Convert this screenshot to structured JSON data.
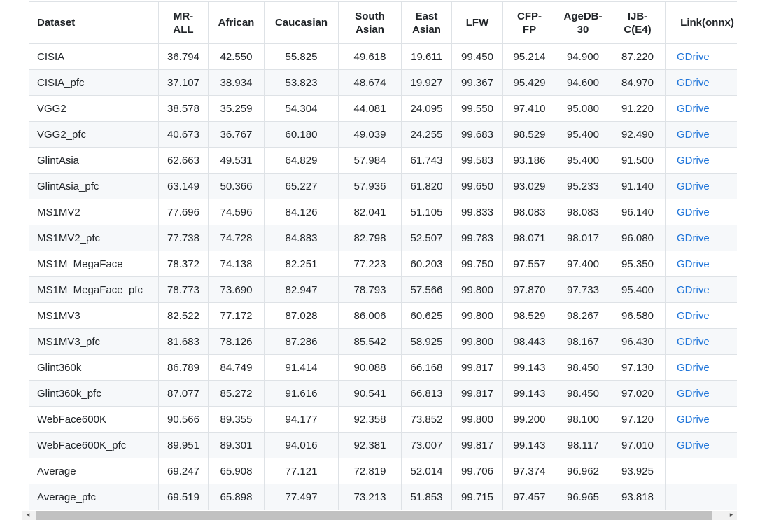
{
  "table": {
    "columns": [
      {
        "label": "Dataset",
        "display": "Dataset"
      },
      {
        "label": "MR-ALL",
        "display": "MR-\nALL"
      },
      {
        "label": "African",
        "display": "African"
      },
      {
        "label": "Caucasian",
        "display": "Caucasian"
      },
      {
        "label": "South Asian",
        "display": "South\nAsian"
      },
      {
        "label": "East Asian",
        "display": "East\nAsian"
      },
      {
        "label": "LFW",
        "display": "LFW"
      },
      {
        "label": "CFP-FP",
        "display": "CFP-\nFP"
      },
      {
        "label": "AgeDB-30",
        "display": "AgeDB-\n30"
      },
      {
        "label": "IJB-C(E4)",
        "display": "IJB-\nC(E4)"
      },
      {
        "label": "Link(onnx)",
        "display": "Link(onnx)"
      }
    ],
    "rows": [
      {
        "dataset": "CISIA",
        "values": [
          "36.794",
          "42.550",
          "55.825",
          "49.618",
          "19.611",
          "99.450",
          "95.214",
          "94.900",
          "87.220"
        ],
        "link": "GDrive"
      },
      {
        "dataset": "CISIA_pfc",
        "values": [
          "37.107",
          "38.934",
          "53.823",
          "48.674",
          "19.927",
          "99.367",
          "95.429",
          "94.600",
          "84.970"
        ],
        "link": "GDrive"
      },
      {
        "dataset": "VGG2",
        "values": [
          "38.578",
          "35.259",
          "54.304",
          "44.081",
          "24.095",
          "99.550",
          "97.410",
          "95.080",
          "91.220"
        ],
        "link": "GDrive"
      },
      {
        "dataset": "VGG2_pfc",
        "values": [
          "40.673",
          "36.767",
          "60.180",
          "49.039",
          "24.255",
          "99.683",
          "98.529",
          "95.400",
          "92.490"
        ],
        "link": "GDrive"
      },
      {
        "dataset": "GlintAsia",
        "values": [
          "62.663",
          "49.531",
          "64.829",
          "57.984",
          "61.743",
          "99.583",
          "93.186",
          "95.400",
          "91.500"
        ],
        "link": "GDrive"
      },
      {
        "dataset": "GlintAsia_pfc",
        "values": [
          "63.149",
          "50.366",
          "65.227",
          "57.936",
          "61.820",
          "99.650",
          "93.029",
          "95.233",
          "91.140"
        ],
        "link": "GDrive"
      },
      {
        "dataset": "MS1MV2",
        "values": [
          "77.696",
          "74.596",
          "84.126",
          "82.041",
          "51.105",
          "99.833",
          "98.083",
          "98.083",
          "96.140"
        ],
        "link": "GDrive"
      },
      {
        "dataset": "MS1MV2_pfc",
        "values": [
          "77.738",
          "74.728",
          "84.883",
          "82.798",
          "52.507",
          "99.783",
          "98.071",
          "98.017",
          "96.080"
        ],
        "link": "GDrive"
      },
      {
        "dataset": "MS1M_MegaFace",
        "values": [
          "78.372",
          "74.138",
          "82.251",
          "77.223",
          "60.203",
          "99.750",
          "97.557",
          "97.400",
          "95.350"
        ],
        "link": "GDrive"
      },
      {
        "dataset": "MS1M_MegaFace_pfc",
        "values": [
          "78.773",
          "73.690",
          "82.947",
          "78.793",
          "57.566",
          "99.800",
          "97.870",
          "97.733",
          "95.400"
        ],
        "link": "GDrive"
      },
      {
        "dataset": "MS1MV3",
        "values": [
          "82.522",
          "77.172",
          "87.028",
          "86.006",
          "60.625",
          "99.800",
          "98.529",
          "98.267",
          "96.580"
        ],
        "link": "GDrive"
      },
      {
        "dataset": "MS1MV3_pfc",
        "values": [
          "81.683",
          "78.126",
          "87.286",
          "85.542",
          "58.925",
          "99.800",
          "98.443",
          "98.167",
          "96.430"
        ],
        "link": "GDrive"
      },
      {
        "dataset": "Glint360k",
        "values": [
          "86.789",
          "84.749",
          "91.414",
          "90.088",
          "66.168",
          "99.817",
          "99.143",
          "98.450",
          "97.130"
        ],
        "link": "GDrive"
      },
      {
        "dataset": "Glint360k_pfc",
        "values": [
          "87.077",
          "85.272",
          "91.616",
          "90.541",
          "66.813",
          "99.817",
          "99.143",
          "98.450",
          "97.020"
        ],
        "link": "GDrive"
      },
      {
        "dataset": "WebFace600K",
        "values": [
          "90.566",
          "89.355",
          "94.177",
          "92.358",
          "73.852",
          "99.800",
          "99.200",
          "98.100",
          "97.120"
        ],
        "link": "GDrive"
      },
      {
        "dataset": "WebFace600K_pfc",
        "values": [
          "89.951",
          "89.301",
          "94.016",
          "92.381",
          "73.007",
          "99.817",
          "99.143",
          "98.117",
          "97.010"
        ],
        "link": "GDrive"
      },
      {
        "dataset": "Average",
        "values": [
          "69.247",
          "65.908",
          "77.121",
          "72.819",
          "52.014",
          "99.706",
          "97.374",
          "96.962",
          "93.925"
        ],
        "link": ""
      },
      {
        "dataset": "Average_pfc",
        "values": [
          "69.519",
          "65.898",
          "77.497",
          "73.213",
          "51.853",
          "99.715",
          "97.457",
          "96.965",
          "93.818"
        ],
        "link": ""
      }
    ]
  },
  "scrollbar": {
    "left_arrow": "◂",
    "right_arrow": "▸"
  },
  "colors": {
    "link": "#2176d9",
    "row_stripe": "#f6f8fa",
    "border": "#dee2e6",
    "text": "#212529",
    "scrollbar_track": "#f1f1f1",
    "scrollbar_thumb": "#c1c1c1"
  }
}
